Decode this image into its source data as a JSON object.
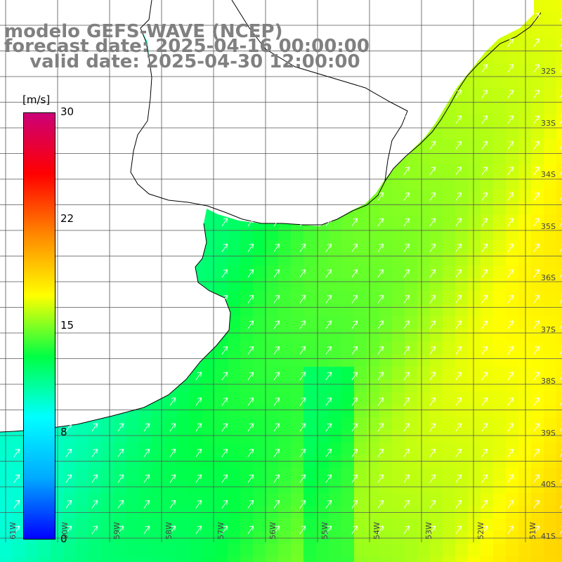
{
  "header": {
    "line1": "modelo GEFS-WAVE (NCEP)",
    "line2": "forecast date: 2025-04-16 00:00:00",
    "line3": "    valid date: 2025-04-30 12:00:00"
  },
  "colorbar": {
    "unit": "[m/s]",
    "ticks": [
      "30",
      "22",
      "15",
      "8",
      "0"
    ],
    "min": 0,
    "max": 30,
    "stops": [
      "#0000ff",
      "#00aaff",
      "#00ffff",
      "#00ff44",
      "#ffff00",
      "#ff8800",
      "#ff0000",
      "#cc0077"
    ]
  },
  "lat_labels": [
    "32S",
    "33S",
    "34S",
    "35S",
    "36S",
    "37S",
    "38S",
    "39S",
    "40S",
    "41S"
  ],
  "lon_labels": [
    "61W",
    "60W",
    "59W",
    "58W",
    "57W",
    "56W",
    "55W",
    "54W",
    "53W",
    "52W",
    "51W"
  ],
  "map_colors": {
    "land": "#ffffff",
    "grid": "#555555",
    "coast": "#000000",
    "arrow": "#ffffff"
  }
}
